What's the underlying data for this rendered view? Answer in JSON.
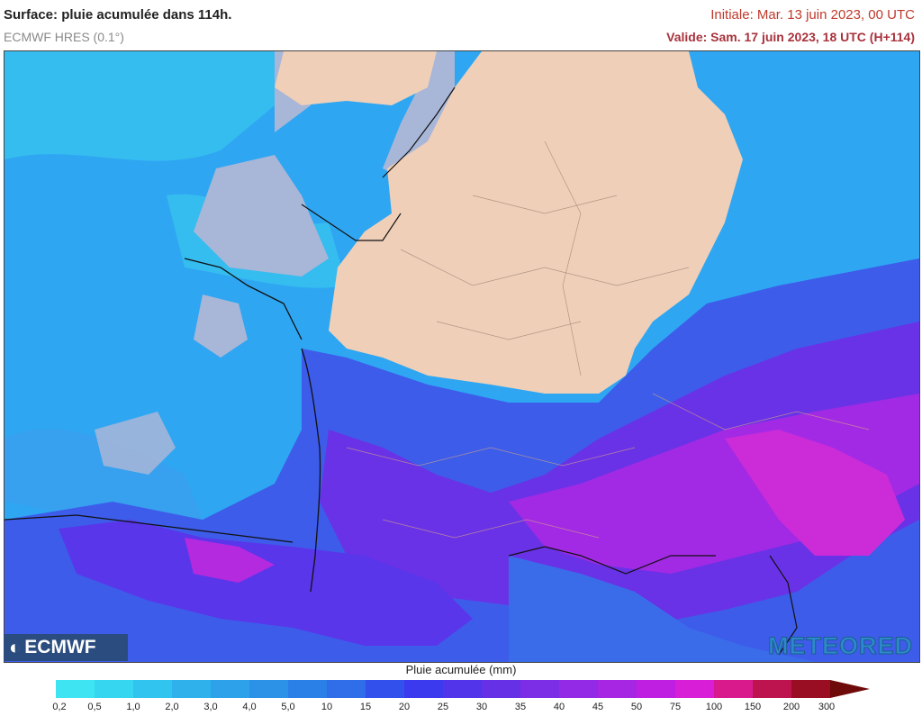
{
  "header": {
    "title": "Surface: pluie acumulée dans 114h.",
    "model": "ECMWF HRES (0.1°)",
    "initial": "Initiale: Mar. 13 juin 2023, 00 UTC",
    "valid": "Valide: Sam. 17 juin 2023, 18 UTC (H+114)"
  },
  "logos": {
    "left": "ECMWF",
    "right": "METEORED"
  },
  "legend": {
    "title": "Pluie acumulée (mm)",
    "labels": [
      "0,2",
      "0,5",
      "1,0",
      "2,0",
      "3,0",
      "4,0",
      "5,0",
      "10",
      "15",
      "20",
      "25",
      "30",
      "35",
      "40",
      "45",
      "50",
      "75",
      "100",
      "150",
      "200",
      "300"
    ],
    "colors": [
      "#3ee4f2",
      "#36d6f0",
      "#31c4ee",
      "#2fb2ec",
      "#2da2ea",
      "#2b92e8",
      "#2a80e6",
      "#2f6de9",
      "#3150ec",
      "#3c3aee",
      "#5234ea",
      "#6630e6",
      "#7c2de6",
      "#922ae6",
      "#a626e4",
      "#bf1fe0",
      "#d81ed6",
      "#d91a8c",
      "#bd1450",
      "#9a0e24",
      "#6e0a0a"
    ]
  },
  "map": {
    "land_color": "#efcfb8",
    "sea_color": "#a8b6d8",
    "rain_light": "#2f9ff0",
    "rain_moderate": "#3b5bea",
    "rain_heavy": "#8a2ce4",
    "rain_extreme": "#d42bd8"
  }
}
